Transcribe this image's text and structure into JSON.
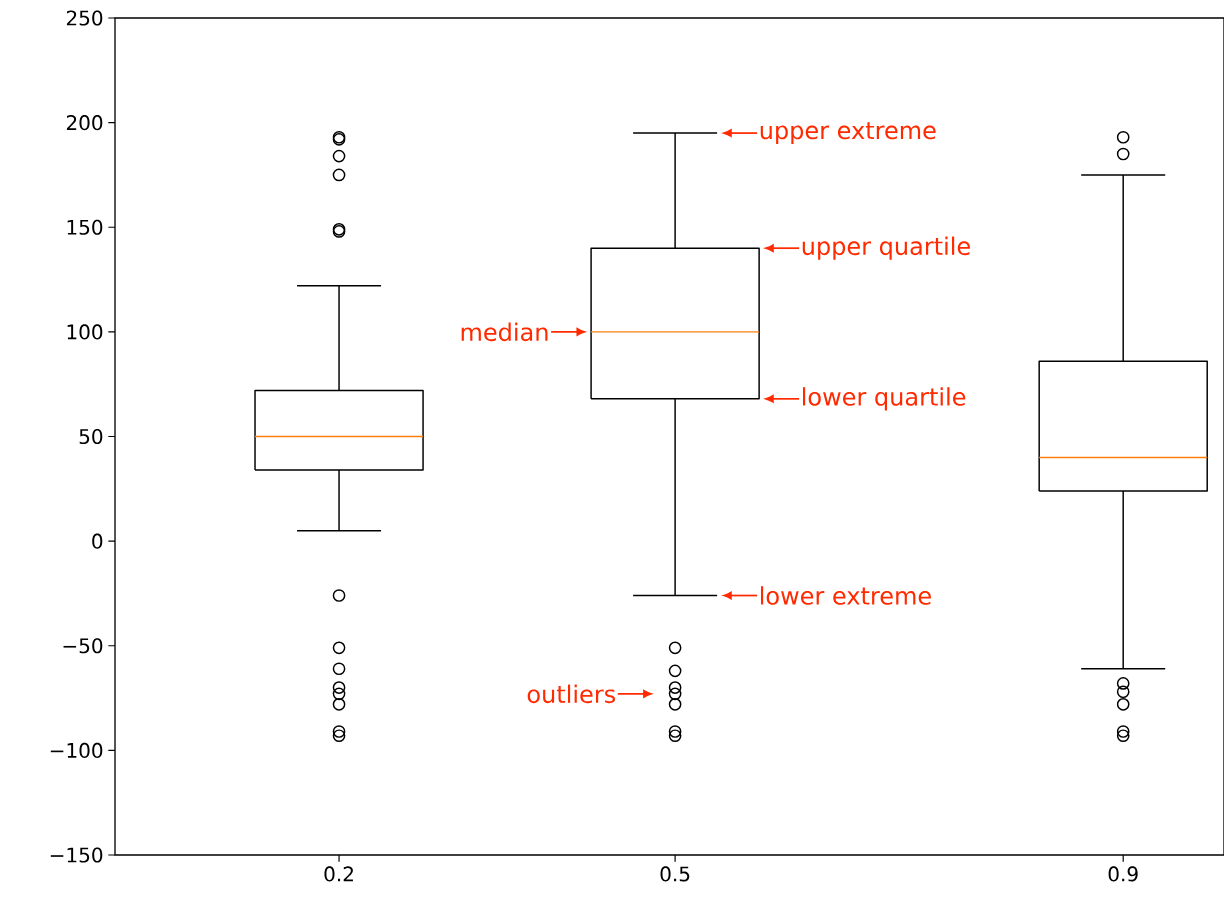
{
  "chart_data": {
    "type": "box",
    "x": [
      0.2,
      0.5,
      0.9
    ],
    "boxes": [
      {
        "low": 5,
        "q1": 34,
        "median": 50,
        "q3": 72,
        "high": 122,
        "outliers": [
          193,
          192,
          184,
          175,
          149,
          148,
          -26,
          -51,
          -61,
          -70,
          -73,
          -78,
          -91,
          -93
        ]
      },
      {
        "low": -26,
        "q1": 68,
        "median": 100,
        "q3": 140,
        "high": 195,
        "outliers": [
          -51,
          -62,
          -70,
          -73,
          -78,
          -91,
          -93
        ]
      },
      {
        "low": -61,
        "q1": 24,
        "median": 40,
        "q3": 86,
        "high": 175,
        "outliers": [
          193,
          185,
          -68,
          -72,
          -78,
          -91,
          -93
        ]
      }
    ],
    "xlim": [
      0,
      0.99
    ],
    "xticks": [
      0.2,
      0.5,
      0.9
    ],
    "ylim": [
      -150,
      250
    ],
    "yticks": [
      {
        "value": -150,
        "label": "−150"
      },
      {
        "value": -100,
        "label": "−100"
      },
      {
        "value": -50,
        "label": "−50"
      },
      0,
      50,
      100,
      150,
      200,
      250
    ],
    "marker": "circle",
    "annotations": [
      "upper extreme",
      "upper quartile",
      "median",
      "lower quartile",
      "lower extreme",
      "outliers"
    ]
  }
}
